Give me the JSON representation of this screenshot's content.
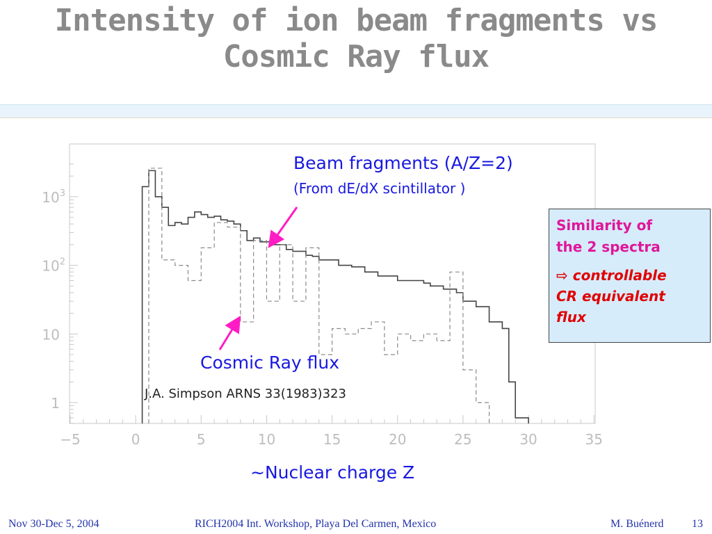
{
  "slide": {
    "title_line1": "Intensity of ion beam fragments vs",
    "title_line2": "Cosmic Ray flux"
  },
  "annotations": {
    "beam_label": "Beam fragments (A/Z=2)",
    "beam_sublabel": "(From dE/dX scintillator )",
    "cr_label": "Cosmic Ray flux",
    "reference": "J.A. Simpson ARNS 33(1983)323",
    "xlabel": "~Nuclear charge Z"
  },
  "callout": {
    "line1": "Similarity of",
    "line2": "the 2 spectra",
    "arrow_glyph": "⇨",
    "line3": "controllable",
    "line4": "CR equivalent",
    "line5": "flux"
  },
  "footer": {
    "date": "Nov 30-Dec 5, 2004",
    "conference": "RICH2004 Int. Workshop, Playa Del Carmen, Mexico",
    "author": "M. Buénerd",
    "page": "13"
  },
  "colors": {
    "accent_blue": "#1818e0",
    "arrow_magenta": "#ff1cc4",
    "callout_bg": "#d6ecfb",
    "callout_pink": "#e0169a",
    "callout_red": "#e00000"
  },
  "chart_data": {
    "type": "histogram",
    "xlim": [
      -5,
      35
    ],
    "ylog": true,
    "ylim": [
      0.5,
      3000
    ],
    "x_ticks": [
      -5,
      0,
      5,
      10,
      15,
      20,
      25,
      30,
      35
    ],
    "y_ticks": [
      {
        "value": 1,
        "label": "1"
      },
      {
        "value": 10,
        "label": "10"
      },
      {
        "value": 100,
        "label": "10",
        "exp": "2"
      },
      {
        "value": 1000,
        "label": "10",
        "exp": "3"
      }
    ],
    "bin_width": 0.5,
    "series": [
      {
        "style": "solid",
        "bin_start": 0.5,
        "values": [
          1400,
          2400,
          1000,
          700,
          380,
          420,
          400,
          500,
          600,
          550,
          500,
          520,
          460,
          440,
          400,
          320,
          230,
          250,
          220,
          220,
          200,
          200,
          170,
          160,
          160,
          140,
          135,
          120,
          120,
          120,
          100,
          100,
          95,
          95,
          80,
          80,
          70,
          70,
          70,
          60,
          60,
          60,
          60,
          55,
          50,
          50,
          45,
          45,
          40,
          30,
          30,
          25,
          25,
          15,
          15,
          12,
          2,
          0.6,
          0.6
        ]
      },
      {
        "style": "dashed",
        "bin_start": 1.0,
        "values": [
          2600,
          2600,
          120,
          120,
          100,
          100,
          60,
          60,
          180,
          180,
          420,
          420,
          360,
          360,
          15,
          15,
          230,
          230,
          30,
          30,
          200,
          200,
          30,
          30,
          180,
          180,
          5,
          5,
          12,
          12,
          10,
          10,
          12,
          12,
          15,
          15,
          5,
          5,
          10,
          10,
          8,
          8,
          10,
          10,
          8,
          8,
          80,
          80,
          3,
          3,
          1,
          1
        ]
      }
    ]
  }
}
